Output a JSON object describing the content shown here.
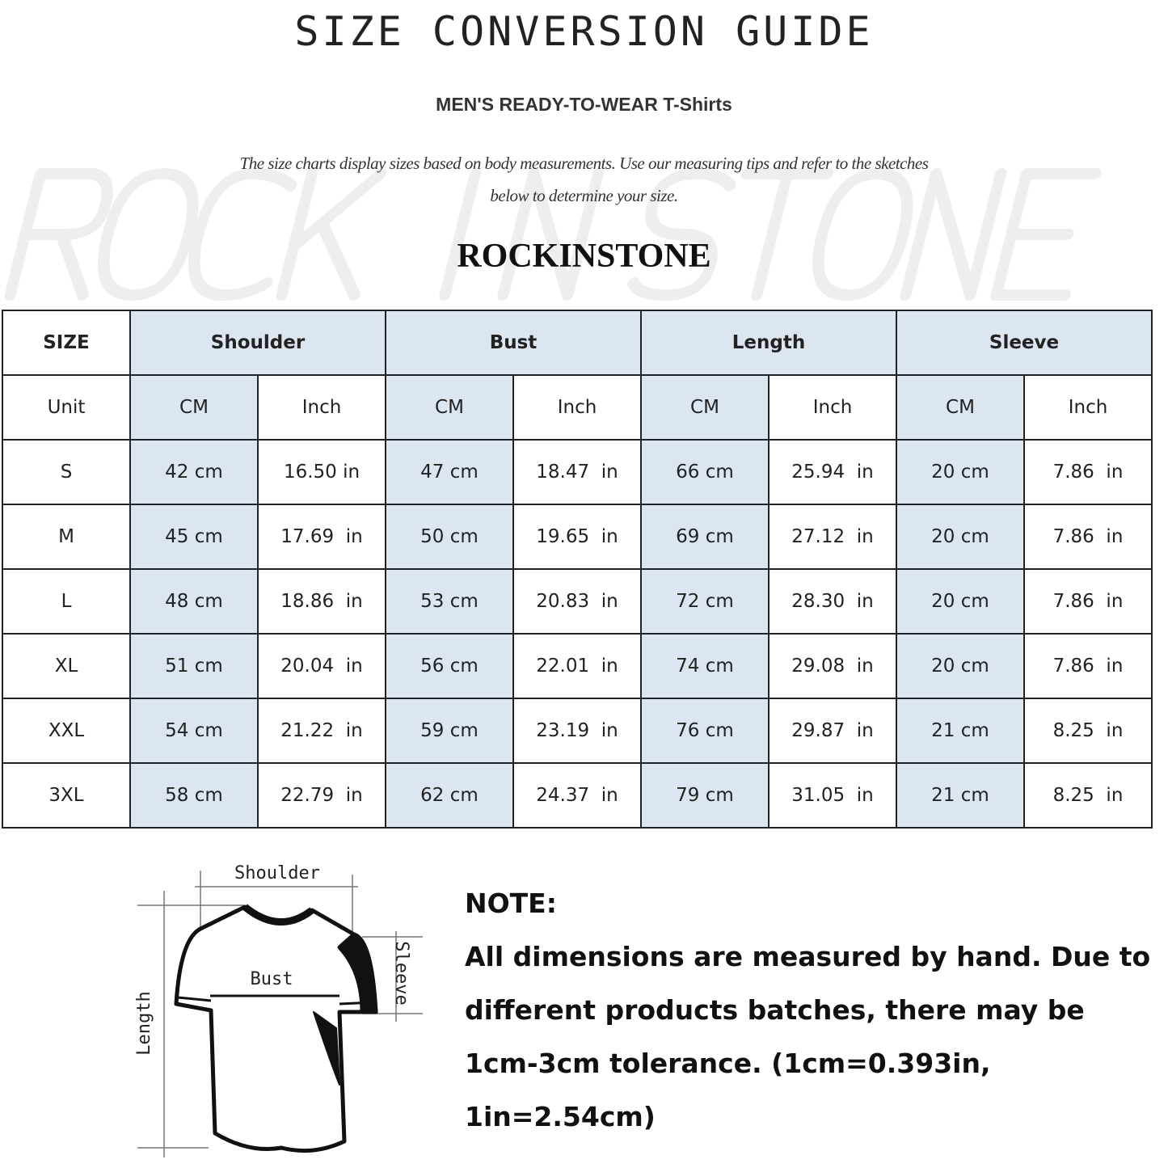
{
  "title": "SIZE CONVERSION GUIDE",
  "subtitle": "MEN'S READY-TO-WEAR T-Shirts",
  "intro_line1": "The size charts display sizes based on body measurements. Use our measuring tips and refer to the sketches",
  "intro_line2": "below to determine your size.",
  "watermark": "ROCK IN STONE",
  "brand": "ROCKINSTONE",
  "accent_color": "#dce6f1",
  "table": {
    "header": [
      "SIZE",
      "Shoulder",
      "Bust",
      "Length",
      "Sleeve"
    ],
    "units": [
      "Unit",
      "CM",
      "Inch",
      "CM",
      "Inch",
      "CM",
      "Inch",
      "CM",
      "Inch"
    ],
    "rows": [
      [
        "S",
        "42 cm",
        "16.50 in",
        "47 cm",
        "18.47  in",
        "66 cm",
        "25.94  in",
        "20 cm",
        "7.86  in"
      ],
      [
        "M",
        "45 cm",
        "17.69  in",
        "50 cm",
        "19.65  in",
        "69 cm",
        "27.12  in",
        "20 cm",
        "7.86  in"
      ],
      [
        "L",
        "48 cm",
        "18.86  in",
        "53 cm",
        "20.83  in",
        "72 cm",
        "28.30  in",
        "20 cm",
        "7.86  in"
      ],
      [
        "XL",
        "51 cm",
        "20.04  in",
        "56 cm",
        "22.01  in",
        "74 cm",
        "29.08  in",
        "20 cm",
        "7.86  in"
      ],
      [
        "XXL",
        "54 cm",
        "21.22  in",
        "59 cm",
        "23.19  in",
        "76 cm",
        "29.87  in",
        "21 cm",
        "8.25  in"
      ],
      [
        "3XL",
        "58 cm",
        "22.79  in",
        "62 cm",
        "24.37  in",
        "79 cm",
        "31.05  in",
        "21 cm",
        "8.25  in"
      ]
    ]
  },
  "diagram": {
    "shoulder": "Shoulder",
    "bust": "Bust",
    "sleeve": "Sleeve",
    "length": "Length"
  },
  "note": {
    "heading": "NOTE:",
    "line1": "All dimensions are measured by hand. Due to",
    "line2": "different products batches, there may be",
    "line3": "1cm-3cm tolerance. (1cm=0.393in, 1in=2.54cm)"
  }
}
